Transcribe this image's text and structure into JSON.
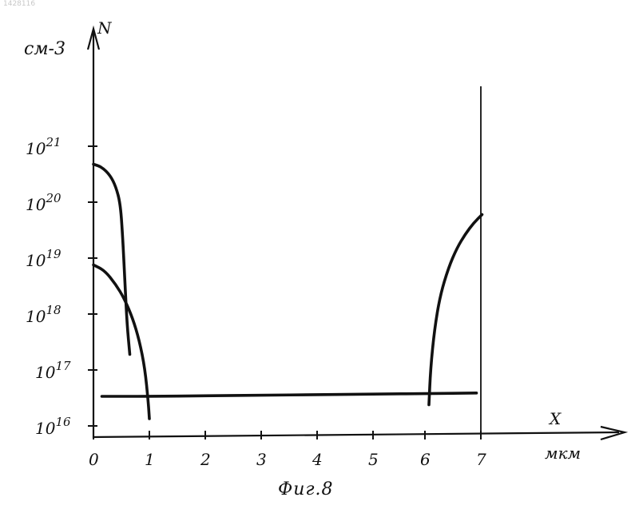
{
  "document": {
    "id": "1428116",
    "caption": "Фиг.8"
  },
  "chart_data": {
    "type": "line",
    "title": "",
    "xlabel": "X",
    "xunit": "мкм",
    "ylabel": "N",
    "yunit": "см-3",
    "x_ticks": [
      0,
      1,
      2,
      3,
      4,
      5,
      6,
      7
    ],
    "y_ticks": [
      {
        "value": 16,
        "label": "10",
        "exp": "16"
      },
      {
        "value": 17,
        "label": "10",
        "exp": "17"
      },
      {
        "value": 18,
        "label": "10",
        "exp": "18"
      },
      {
        "value": 19,
        "label": "10",
        "exp": "19"
      },
      {
        "value": 20,
        "label": "10",
        "exp": "20"
      },
      {
        "value": 21,
        "label": "10",
        "exp": "21"
      }
    ],
    "y_scale": "log",
    "xlim": [
      0,
      7
    ],
    "ylim_log10": [
      16,
      21
    ],
    "grid": false,
    "series": [
      {
        "x": [
          0,
          0.15,
          0.3,
          0.4,
          0.48,
          0.52,
          0.56,
          0.6,
          0.65
        ],
        "y_log10": [
          20.85,
          20.8,
          20.65,
          20.45,
          20.15,
          19.6,
          18.8,
          18.0,
          17.45
        ]
      },
      {
        "x": [
          0,
          0.2,
          0.4,
          0.55,
          0.7,
          0.82,
          0.92,
          0.98,
          1.0
        ],
        "y_log10": [
          19.05,
          18.95,
          18.7,
          18.45,
          18.1,
          17.7,
          17.2,
          16.6,
          16.3
        ]
      },
      {
        "x": [
          0.15,
          1,
          2,
          3,
          4,
          5,
          6,
          6.85
        ],
        "y_log10": [
          16.7,
          16.7,
          16.71,
          16.72,
          16.73,
          16.74,
          16.75,
          16.76
        ]
      },
      {
        "x": [
          6.0,
          6.03,
          6.1,
          6.2,
          6.35,
          6.5,
          6.65,
          6.8,
          6.95
        ],
        "y_log10": [
          16.55,
          17.2,
          17.9,
          18.5,
          19.0,
          19.35,
          19.6,
          19.8,
          19.95
        ]
      }
    ],
    "boundary_x": 7
  }
}
